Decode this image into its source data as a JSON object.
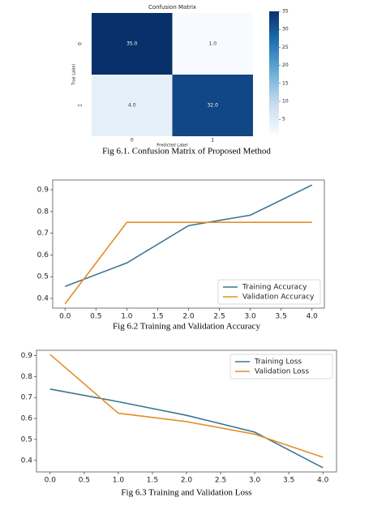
{
  "chart_data": [
    {
      "type": "heatmap",
      "title": "Confusion Matrix",
      "xlabel": "Predicted Label",
      "ylabel": "True Label",
      "x_categories": [
        "0",
        "1"
      ],
      "y_categories": [
        "0",
        "1"
      ],
      "values": [
        [
          35.0,
          1.0
        ],
        [
          4.0,
          32.0
        ]
      ],
      "value_labels": [
        [
          "35.0",
          "1.0"
        ],
        [
          "4.0",
          "32.0"
        ]
      ],
      "clim": [
        1,
        35
      ],
      "cticks": [
        5,
        10,
        15,
        20,
        25,
        30,
        35
      ],
      "colormap": [
        "#f7fbff",
        "#c6dbef",
        "#6baed6",
        "#2171b5",
        "#08306b"
      ],
      "caption": "Fig 6.1. Confusion Matrix of Proposed Method"
    },
    {
      "type": "line",
      "x": [
        0,
        1,
        2,
        3,
        4
      ],
      "series": [
        {
          "name": "Training Accuracy",
          "color": "#3b7593",
          "values": [
            0.455,
            0.563,
            0.735,
            0.783,
            0.922
          ]
        },
        {
          "name": "Validation Accuracy",
          "color": "#e38f2a",
          "values": [
            0.375,
            0.75,
            0.75,
            0.75,
            0.75
          ]
        }
      ],
      "xlim": [
        -0.2,
        4.2
      ],
      "xticks": [
        {
          "value": 0,
          "label": "0.0"
        },
        {
          "value": 0.5,
          "label": "0.5"
        },
        {
          "value": 1,
          "label": "1.0"
        },
        {
          "value": 1.5,
          "label": "1.5"
        },
        {
          "value": 2,
          "label": "2.0"
        },
        {
          "value": 2.5,
          "label": "2.5"
        },
        {
          "value": 3,
          "label": "3.0"
        },
        {
          "value": 3.5,
          "label": "3.5"
        },
        {
          "value": 4,
          "label": "4.0"
        }
      ],
      "ylim": [
        0.355,
        0.945
      ],
      "yticks": [
        0.4,
        0.5,
        0.6,
        0.7,
        0.8,
        0.9
      ],
      "legend": "lower right",
      "caption": "Fig 6.2 Training and Validation Accuracy"
    },
    {
      "type": "line",
      "x": [
        0,
        1,
        2,
        3,
        4
      ],
      "series": [
        {
          "name": "Training Loss",
          "color": "#3b7593",
          "values": [
            0.74,
            0.68,
            0.615,
            0.535,
            0.365
          ]
        },
        {
          "name": "Validation Loss",
          "color": "#e38f2a",
          "values": [
            0.905,
            0.625,
            0.585,
            0.525,
            0.415
          ]
        }
      ],
      "xlim": [
        -0.2,
        4.2
      ],
      "xticks": [
        {
          "value": 0,
          "label": "0.0"
        },
        {
          "value": 0.5,
          "label": "0.5"
        },
        {
          "value": 1,
          "label": "1.0"
        },
        {
          "value": 1.5,
          "label": "1.5"
        },
        {
          "value": 2,
          "label": "2.0"
        },
        {
          "value": 2.5,
          "label": "2.5"
        },
        {
          "value": 3,
          "label": "3.0"
        },
        {
          "value": 3.5,
          "label": "3.5"
        },
        {
          "value": 4,
          "label": "4.0"
        }
      ],
      "ylim": [
        0.345,
        0.925
      ],
      "yticks": [
        0.4,
        0.5,
        0.6,
        0.7,
        0.8,
        0.9
      ],
      "legend": "upper right",
      "caption": "Fig 6.3 Training and Validation Loss"
    }
  ]
}
